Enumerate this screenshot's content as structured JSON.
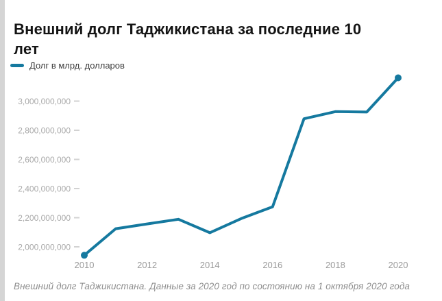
{
  "header": {
    "title": "Внешний долг Таджикистана за последние 10 лет"
  },
  "legend": {
    "label": "Долг в млрд. долларов",
    "color": "#15799f"
  },
  "footer": {
    "caption": "Внешний долг Таджикистана. Данные за 2020 год по состоянию на 1 октября 2020 года"
  },
  "chart_data": {
    "type": "line",
    "title": "Внешний долг Таджикистана за последние 10 лет",
    "series_name": "Долг в млрд. долларов",
    "line_color": "#15799f",
    "x": [
      2010,
      2011,
      2012,
      2013,
      2014,
      2015,
      2016,
      2017,
      2018,
      2019,
      2020
    ],
    "values": [
      1942000000,
      2124000000,
      2157000000,
      2189000000,
      2097000000,
      2194000000,
      2275000000,
      2879000000,
      2928000000,
      2925000000,
      3160000000
    ],
    "x_ticks": [
      2010,
      2012,
      2014,
      2016,
      2018,
      2020
    ],
    "y_ticks": [
      2000000000,
      2200000000,
      2400000000,
      2600000000,
      2800000000,
      3000000000
    ],
    "y_tick_labels": [
      "2,000,000,000",
      "2,200,000,000",
      "2,400,000,000",
      "2,600,000,000",
      "2,800,000,000",
      "3,000,000,000"
    ],
    "ylim": [
      1900000000,
      3210000000
    ],
    "xlabel": "",
    "ylabel": "",
    "grid": "tick-marks-only",
    "legend_position": "top-left",
    "markers": "first-and-last-point"
  }
}
